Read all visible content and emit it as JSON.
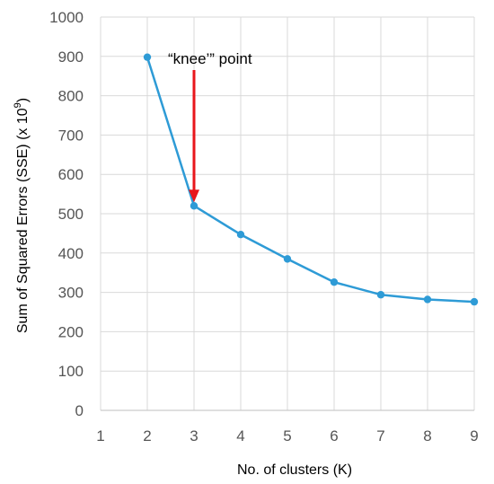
{
  "chart_data": {
    "type": "line",
    "title": "",
    "xlabel": "No. of clusters (K)",
    "ylabel": "Sum of Squared Errors (SSE) (x 10",
    "ylabel_exponent": "9",
    "ylabel_suffix": ")",
    "xlim": [
      1,
      9
    ],
    "ylim": [
      0,
      1000
    ],
    "x_ticks": [
      1,
      2,
      3,
      4,
      5,
      6,
      7,
      8,
      9
    ],
    "y_ticks": [
      0,
      100,
      200,
      300,
      400,
      500,
      600,
      700,
      800,
      900,
      1000
    ],
    "grid": true,
    "legend": "none",
    "series": [
      {
        "x": [
          2,
          3,
          4,
          5,
          6,
          7,
          8,
          9
        ],
        "values": [
          898,
          520,
          447,
          385,
          326,
          294,
          282,
          276
        ],
        "color": "#2E9BD6"
      }
    ],
    "annotation": {
      "text": "“knee’” point",
      "points_to": [
        3,
        520
      ],
      "arrow_color": "#E8161B"
    }
  }
}
